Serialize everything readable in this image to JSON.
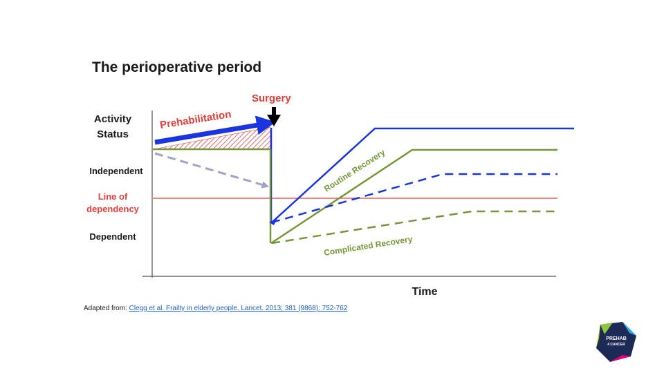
{
  "slide": {
    "title": "The perioperative period"
  },
  "diagram": {
    "surgery_label": "Surgery",
    "y_label_line1": "Activity",
    "y_label_line2": "Status",
    "independent_label": "Independent",
    "line_of_dependency_line1": "Line of",
    "line_of_dependency_line2": "dependency",
    "dependent_label": "Dependent",
    "prehabilitation_label": "Prehabilitation",
    "routine_recovery_label": "Routine Recovery",
    "complicated_recovery_label": "Complicated Recovery",
    "x_label": "Time"
  },
  "citation": {
    "prefix": "Adapted from: ",
    "reference": "Clegg et al. Frailty in elderly people. Lancet. 2013; 381 (9868): 752-762"
  },
  "logo": {
    "line1": "PREHAB",
    "line2": "4 CANCER"
  },
  "colors": {
    "blue": "#1a35e0",
    "green": "#76963a",
    "red": "#e0403a",
    "grey_dashed": "#a6a0c8",
    "axis": "#555555"
  }
}
